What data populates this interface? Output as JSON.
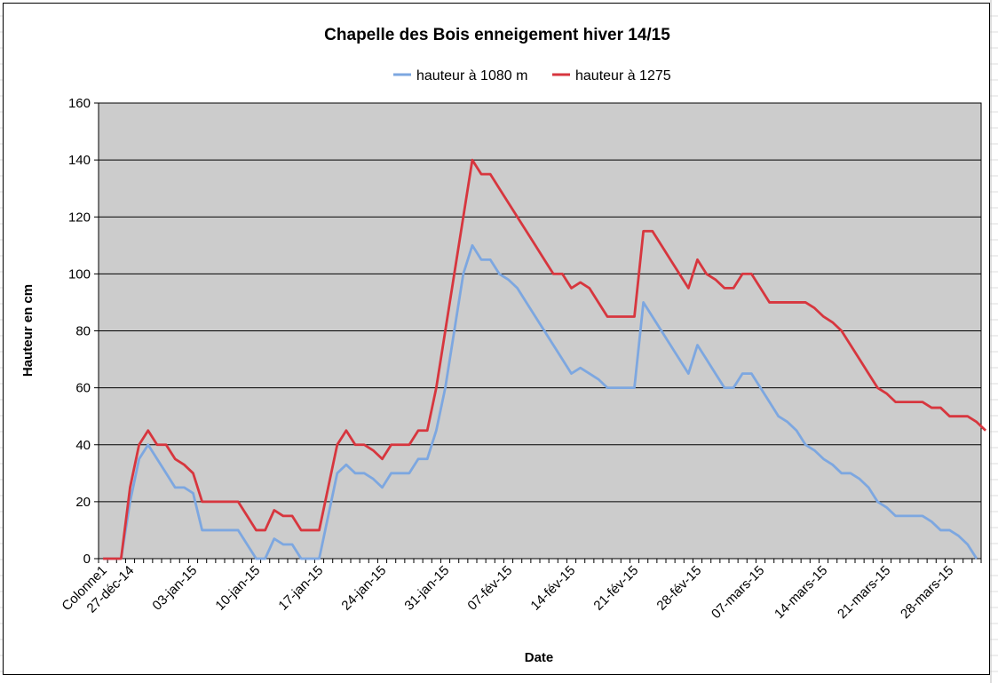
{
  "chart_data": {
    "type": "line",
    "title": "Chapelle des Bois enneigement hiver 14/15",
    "xlabel": "Date",
    "ylabel": "Hauteur en cm",
    "ylim": [
      0,
      160
    ],
    "yticks": [
      0,
      20,
      40,
      60,
      80,
      100,
      120,
      140,
      160
    ],
    "grid": true,
    "legend_position": "top-center",
    "x_tick_labels": [
      "Colonne1",
      "27-déc-14",
      "03-jan-15",
      "10-jan-15",
      "17-jan-15",
      "24-jan-15",
      "31-jan-15",
      "07-fév-15",
      "14-fév-15",
      "21-fév-15",
      "28-fév-15",
      "07-mars-15",
      "14-mars-15",
      "21-mars-15",
      "28-mars-15"
    ],
    "x_points_count": 98,
    "colors": {
      "plot_background": "#cccccc",
      "series_1": "#7da7e0",
      "series_2": "#d7363e",
      "grid": "#000000"
    },
    "series": [
      {
        "name": "hauteur à 1080 m",
        "color": "#7da7e0",
        "points": [
          [
            0,
            0
          ],
          [
            2,
            0
          ],
          [
            3,
            20
          ],
          [
            4,
            35
          ],
          [
            5,
            40
          ],
          [
            6,
            35
          ],
          [
            7,
            30
          ],
          [
            8,
            25
          ],
          [
            9,
            25
          ],
          [
            10,
            23
          ],
          [
            11,
            10
          ],
          [
            12,
            10
          ],
          [
            13,
            10
          ],
          [
            14,
            10
          ],
          [
            15,
            10
          ],
          [
            16,
            5
          ],
          [
            17,
            0
          ],
          [
            18,
            0
          ],
          [
            19,
            7
          ],
          [
            20,
            5
          ],
          [
            21,
            5
          ],
          [
            22,
            0
          ],
          [
            23,
            0
          ],
          [
            24,
            0
          ],
          [
            25,
            15
          ],
          [
            26,
            30
          ],
          [
            27,
            33
          ],
          [
            28,
            30
          ],
          [
            29,
            30
          ],
          [
            30,
            28
          ],
          [
            31,
            25
          ],
          [
            32,
            30
          ],
          [
            33,
            30
          ],
          [
            34,
            30
          ],
          [
            35,
            35
          ],
          [
            36,
            35
          ],
          [
            37,
            45
          ],
          [
            38,
            60
          ],
          [
            39,
            80
          ],
          [
            40,
            100
          ],
          [
            41,
            110
          ],
          [
            42,
            105
          ],
          [
            43,
            105
          ],
          [
            44,
            100
          ],
          [
            45,
            98
          ],
          [
            46,
            95
          ],
          [
            47,
            90
          ],
          [
            48,
            85
          ],
          [
            49,
            80
          ],
          [
            50,
            75
          ],
          [
            51,
            70
          ],
          [
            52,
            65
          ],
          [
            53,
            67
          ],
          [
            54,
            65
          ],
          [
            55,
            63
          ],
          [
            56,
            60
          ],
          [
            57,
            60
          ],
          [
            58,
            60
          ],
          [
            59,
            60
          ],
          [
            60,
            90
          ],
          [
            61,
            85
          ],
          [
            62,
            80
          ],
          [
            63,
            75
          ],
          [
            64,
            70
          ],
          [
            65,
            65
          ],
          [
            66,
            75
          ],
          [
            67,
            70
          ],
          [
            68,
            65
          ],
          [
            69,
            60
          ],
          [
            70,
            60
          ],
          [
            71,
            65
          ],
          [
            72,
            65
          ],
          [
            73,
            60
          ],
          [
            74,
            55
          ],
          [
            75,
            50
          ],
          [
            76,
            48
          ],
          [
            77,
            45
          ],
          [
            78,
            40
          ],
          [
            79,
            38
          ],
          [
            80,
            35
          ],
          [
            81,
            33
          ],
          [
            82,
            30
          ],
          [
            83,
            30
          ],
          [
            84,
            28
          ],
          [
            85,
            25
          ],
          [
            86,
            20
          ],
          [
            87,
            18
          ],
          [
            88,
            15
          ],
          [
            89,
            15
          ],
          [
            90,
            15
          ],
          [
            91,
            15
          ],
          [
            92,
            13
          ],
          [
            93,
            10
          ],
          [
            94,
            10
          ],
          [
            95,
            8
          ],
          [
            96,
            5
          ],
          [
            97,
            0
          ]
        ]
      },
      {
        "name": "hauteur à 1275",
        "color": "#d7363e",
        "points": [
          [
            0,
            0
          ],
          [
            2,
            0
          ],
          [
            3,
            25
          ],
          [
            4,
            40
          ],
          [
            5,
            45
          ],
          [
            6,
            40
          ],
          [
            7,
            40
          ],
          [
            8,
            35
          ],
          [
            9,
            33
          ],
          [
            10,
            30
          ],
          [
            11,
            20
          ],
          [
            12,
            20
          ],
          [
            13,
            20
          ],
          [
            14,
            20
          ],
          [
            15,
            20
          ],
          [
            16,
            15
          ],
          [
            17,
            10
          ],
          [
            18,
            10
          ],
          [
            19,
            17
          ],
          [
            20,
            15
          ],
          [
            21,
            15
          ],
          [
            22,
            10
          ],
          [
            23,
            10
          ],
          [
            24,
            10
          ],
          [
            25,
            25
          ],
          [
            26,
            40
          ],
          [
            27,
            45
          ],
          [
            28,
            40
          ],
          [
            29,
            40
          ],
          [
            30,
            38
          ],
          [
            31,
            35
          ],
          [
            32,
            40
          ],
          [
            33,
            40
          ],
          [
            34,
            40
          ],
          [
            35,
            45
          ],
          [
            36,
            45
          ],
          [
            37,
            60
          ],
          [
            38,
            80
          ],
          [
            39,
            100
          ],
          [
            40,
            120
          ],
          [
            41,
            140
          ],
          [
            42,
            135
          ],
          [
            43,
            135
          ],
          [
            44,
            130
          ],
          [
            45,
            125
          ],
          [
            46,
            120
          ],
          [
            47,
            115
          ],
          [
            48,
            110
          ],
          [
            49,
            105
          ],
          [
            50,
            100
          ],
          [
            51,
            100
          ],
          [
            52,
            95
          ],
          [
            53,
            97
          ],
          [
            54,
            95
          ],
          [
            55,
            90
          ],
          [
            56,
            85
          ],
          [
            57,
            85
          ],
          [
            58,
            85
          ],
          [
            59,
            85
          ],
          [
            60,
            115
          ],
          [
            61,
            115
          ],
          [
            62,
            110
          ],
          [
            63,
            105
          ],
          [
            64,
            100
          ],
          [
            65,
            95
          ],
          [
            66,
            105
          ],
          [
            67,
            100
          ],
          [
            68,
            98
          ],
          [
            69,
            95
          ],
          [
            70,
            95
          ],
          [
            71,
            100
          ],
          [
            72,
            100
          ],
          [
            73,
            95
          ],
          [
            74,
            90
          ],
          [
            75,
            90
          ],
          [
            76,
            90
          ],
          [
            77,
            90
          ],
          [
            78,
            90
          ],
          [
            79,
            88
          ],
          [
            80,
            85
          ],
          [
            81,
            83
          ],
          [
            82,
            80
          ],
          [
            83,
            75
          ],
          [
            84,
            70
          ],
          [
            85,
            65
          ],
          [
            86,
            60
          ],
          [
            87,
            58
          ],
          [
            88,
            55
          ],
          [
            89,
            55
          ],
          [
            90,
            55
          ],
          [
            91,
            55
          ],
          [
            92,
            53
          ],
          [
            93,
            53
          ],
          [
            94,
            50
          ],
          [
            95,
            50
          ],
          [
            96,
            50
          ],
          [
            97,
            48
          ],
          [
            98,
            45
          ]
        ]
      }
    ]
  }
}
